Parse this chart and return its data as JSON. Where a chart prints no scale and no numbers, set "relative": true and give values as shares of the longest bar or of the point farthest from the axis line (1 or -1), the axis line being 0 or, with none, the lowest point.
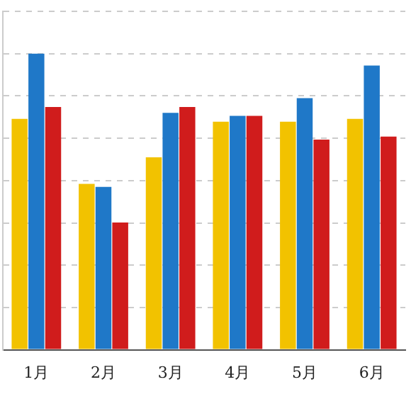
{
  "chart_data": {
    "type": "bar",
    "relative": true,
    "categories": [
      "1月",
      "2月",
      "3月",
      "4月",
      "5月",
      "6月"
    ],
    "grid": "y",
    "series": [
      {
        "color": "#f2c200",
        "values": [
          0.78,
          0.56,
          0.65,
          0.77,
          0.77,
          0.78
        ]
      },
      {
        "color": "#1f78c8",
        "values": [
          1,
          0.55,
          0.8,
          0.79,
          0.85,
          0.96
        ]
      },
      {
        "color": "#d01c1c",
        "values": [
          0.82,
          0.43,
          0.82,
          0.79,
          0.71,
          0.72
        ]
      }
    ]
  }
}
